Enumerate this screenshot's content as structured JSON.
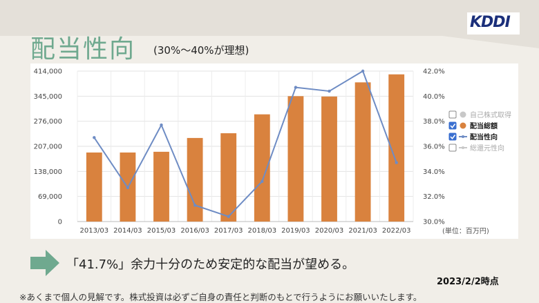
{
  "header": {
    "title": "配当性向",
    "subtitle": "(30%～40%が理想)",
    "logo_text": "KDDI"
  },
  "chart_data": {
    "type": "bar",
    "categories": [
      "2013/03",
      "2014/03",
      "2015/03",
      "2016/03",
      "2017/03",
      "2018/03",
      "2019/03",
      "2020/03",
      "2021/03",
      "2022/03"
    ],
    "series": [
      {
        "name": "配当総額",
        "type": "bar",
        "axis": "left",
        "color": "#d9823e",
        "values": [
          190000,
          190000,
          192000,
          230000,
          243000,
          295000,
          345000,
          344000,
          383000,
          405000
        ]
      },
      {
        "name": "配当性向",
        "type": "line",
        "axis": "right",
        "color": "#6e8cc4",
        "values": [
          36.7,
          32.7,
          37.7,
          31.3,
          30.4,
          33.2,
          40.7,
          40.4,
          42.0,
          34.7
        ]
      }
    ],
    "left_axis": {
      "ylim": [
        0,
        414000
      ],
      "ticks": [
        "0",
        "69,000",
        "138,000",
        "207,000",
        "276,000",
        "345,000",
        "414,000"
      ]
    },
    "right_axis": {
      "ylim": [
        30.0,
        42.0
      ],
      "ticks": [
        "30.0%",
        "32.0%",
        "34.0%",
        "36.0%",
        "38.0%",
        "40.0%",
        "42.0%"
      ]
    },
    "unit_label": "(単位：百万円)",
    "grid": true,
    "legend": {
      "placement": "right",
      "items": [
        {
          "label": "自己株式取得",
          "checked": false,
          "marker": "circle",
          "color": "#c8c8c8",
          "faded": true
        },
        {
          "label": "配当総額",
          "checked": true,
          "marker": "circle",
          "color": "#d9823e",
          "faded": false
        },
        {
          "label": "配当性向",
          "checked": true,
          "marker": "line",
          "color": "#6e8cc4",
          "faded": false
        },
        {
          "label": "総還元性向",
          "checked": false,
          "marker": "line",
          "color": "#c8c8c8",
          "faded": true
        }
      ]
    }
  },
  "footer": {
    "message": "「41.7%」余力十分のため安定的な配当が望める。",
    "date": "2023/2/2時点",
    "disclaimer": "※あくまで個人の見解です。株式投資は必ずご自身の責任と判断のもとで行うようにお願いいたします。"
  }
}
